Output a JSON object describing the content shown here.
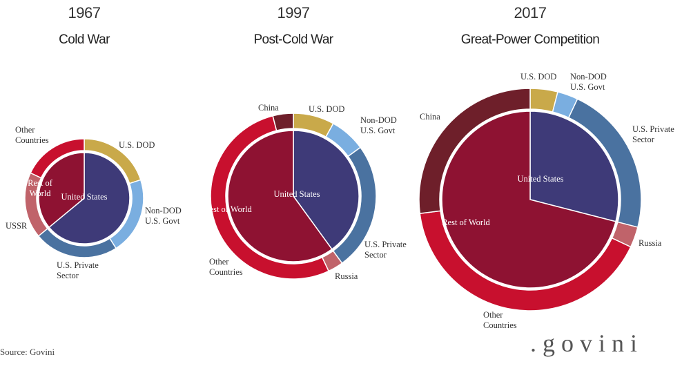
{
  "chart_data": [
    {
      "type": "donut",
      "year": "1967",
      "title": "Cold War",
      "inner": {
        "categories": [
          "United States",
          "Rest of World"
        ],
        "values": [
          64,
          36
        ],
        "colors": [
          "#3e3a78",
          "#8e1232"
        ]
      },
      "outer": {
        "categories": [
          "U.S. DOD",
          "Non-DOD U.S. Govt",
          "U.S. Private Sector",
          "USSR",
          "Other Countries"
        ],
        "values": [
          20,
          21,
          23,
          18,
          18
        ],
        "colors": [
          "#c9a94a",
          "#7aaee0",
          "#4a72a0",
          "#c0636a",
          "#c8102e"
        ]
      }
    },
    {
      "type": "donut",
      "year": "1997",
      "title": "Post-Cold War",
      "inner": {
        "categories": [
          "United States",
          "Rest of World"
        ],
        "values": [
          40,
          60
        ],
        "colors": [
          "#3e3a78",
          "#8e1232"
        ]
      },
      "outer": {
        "categories": [
          "U.S. DOD",
          "Non-DOD U.S. Govt",
          "U.S. Private Sector",
          "Russia",
          "Other Countries",
          "China"
        ],
        "values": [
          8,
          7,
          25,
          3,
          53,
          4
        ],
        "colors": [
          "#c9a94a",
          "#7aaee0",
          "#4a72a0",
          "#c0636a",
          "#c8102e",
          "#6e1f2a"
        ]
      }
    },
    {
      "type": "donut",
      "year": "2017",
      "title": "Great-Power Competition",
      "inner": {
        "categories": [
          "United States",
          "Rest of World"
        ],
        "values": [
          29,
          71
        ],
        "colors": [
          "#3e3a78",
          "#8e1232"
        ]
      },
      "outer": {
        "categories": [
          "U.S. DOD",
          "Non-DOD U.S. Govt",
          "U.S. Private Sector",
          "Russia",
          "Other Countries",
          "China"
        ],
        "values": [
          4,
          3,
          22,
          3,
          41,
          27
        ],
        "colors": [
          "#c9a94a",
          "#7aaee0",
          "#4a72a0",
          "#c0636a",
          "#c8102e",
          "#6e1f2a"
        ]
      }
    }
  ],
  "source": "Source: Govini",
  "logo": ".govini"
}
